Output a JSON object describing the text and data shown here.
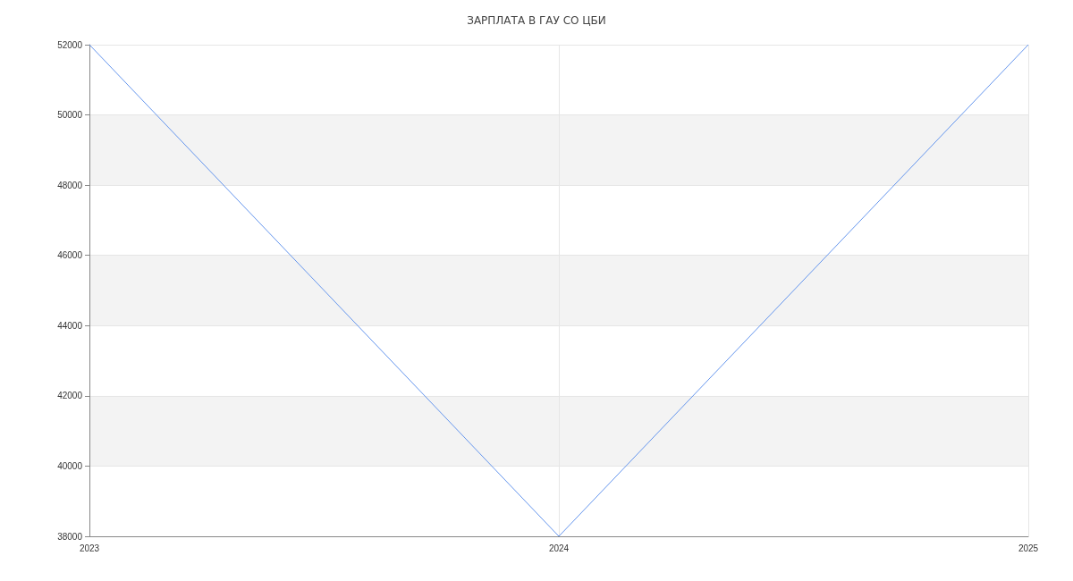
{
  "chart_data": {
    "type": "line",
    "title": "ЗАРПЛАТА В ГАУ СО ЦБИ",
    "categories": [
      "2023",
      "2024",
      "2025"
    ],
    "series": [
      {
        "color": "#6495ed",
        "values": [
          52000,
          38000,
          52000
        ]
      }
    ],
    "ylim": [
      38000,
      52000
    ],
    "yticks": [
      38000,
      40000,
      42000,
      44000,
      46000,
      48000,
      50000,
      52000
    ],
    "grid": true,
    "marker": "none",
    "line_style": "solid"
  }
}
